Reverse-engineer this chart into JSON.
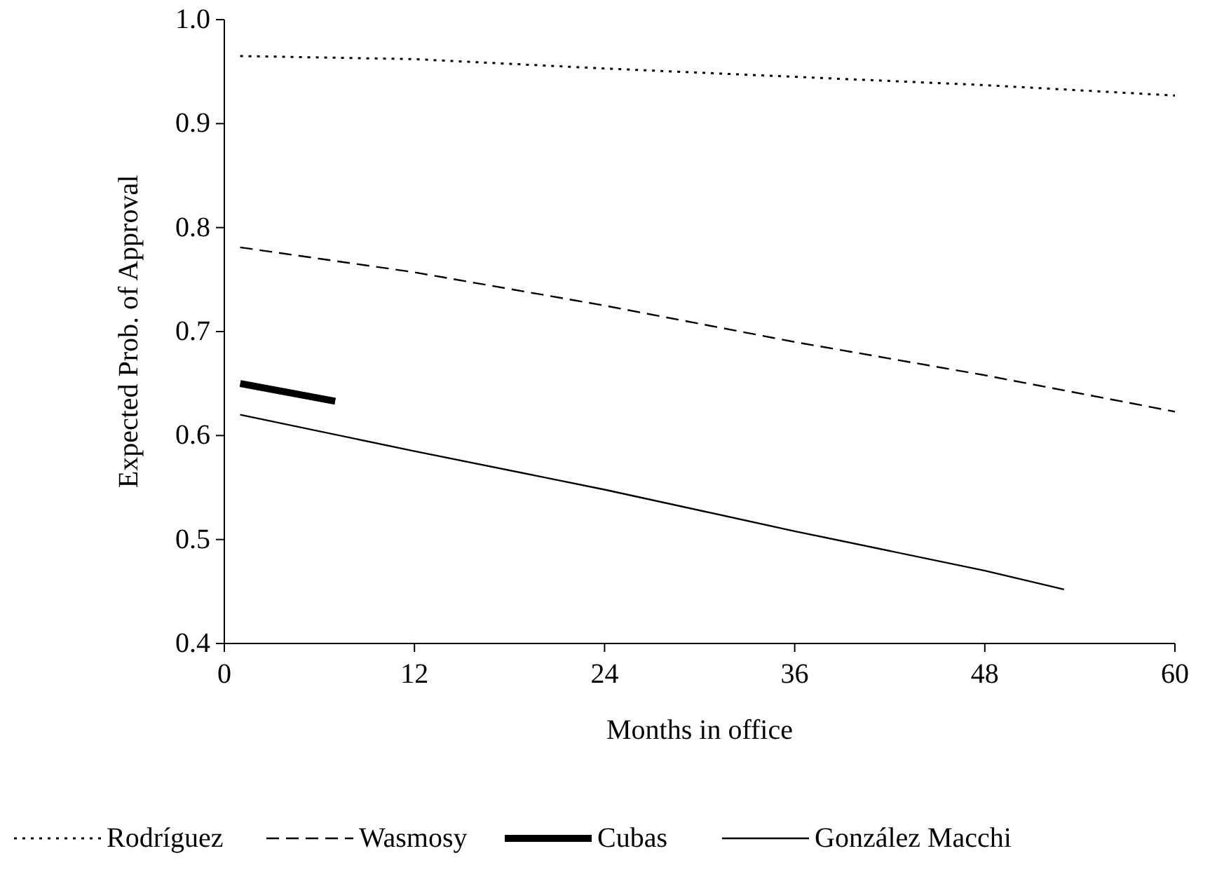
{
  "chart_data": {
    "type": "line",
    "xlabel": "Months in office",
    "ylabel": "Expected Prob. of Approval",
    "xlim": [
      0,
      60
    ],
    "xticks": [
      0,
      12,
      24,
      36,
      48,
      60
    ],
    "ylim": [
      0.4,
      1.0
    ],
    "yticks": [
      {
        "value": 0.4,
        "label": "0.4"
      },
      {
        "value": 0.5,
        "label": "0.5"
      },
      {
        "value": 0.6,
        "label": "0.6"
      },
      {
        "value": 0.7,
        "label": "0.7"
      },
      {
        "value": 0.8,
        "label": "0.8"
      },
      {
        "value": 0.9,
        "label": "0.9"
      },
      {
        "value": 1.0,
        "label": "1.0"
      }
    ],
    "grid": false,
    "legend": "bottom",
    "marker": "none",
    "series": [
      {
        "name": "Rodríguez",
        "color": "#000000",
        "line_style": "dotted",
        "x": [
          1,
          12,
          24,
          36,
          48,
          60
        ],
        "values": [
          0.965,
          0.962,
          0.953,
          0.945,
          0.937,
          0.927
        ]
      },
      {
        "name": "Wasmosy",
        "color": "#000000",
        "line_style": "dashed",
        "x": [
          1,
          12,
          24,
          36,
          48,
          60
        ],
        "values": [
          0.781,
          0.757,
          0.725,
          0.69,
          0.658,
          0.623
        ]
      },
      {
        "name": "Cubas",
        "color": "#000000",
        "line_style": "solid",
        "x": [
          1,
          7
        ],
        "values": [
          0.65,
          0.633
        ]
      },
      {
        "name": "González Macchi",
        "color": "#000000",
        "line_style": "solid",
        "x": [
          1,
          12,
          24,
          36,
          48,
          53
        ],
        "values": [
          0.62,
          0.585,
          0.548,
          0.508,
          0.47,
          0.452
        ]
      }
    ]
  }
}
